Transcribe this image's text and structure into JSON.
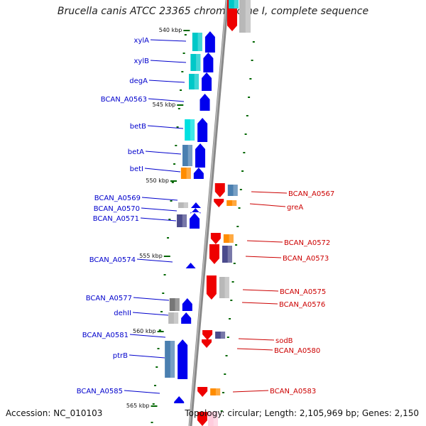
{
  "title": "Brucella canis ATCC 23365 chromosome I, complete sequence",
  "accession": "Accession: NC_010103",
  "topology": "Topology: circular; Length: 2,105,969 bp; Genes: 2,150",
  "colors": {
    "left_label": "#0000cc",
    "right_label": "#cc0000",
    "forward_arrow": "#0000ee",
    "reverse_arrow": "#ee0000",
    "cog_cyan": "#00c8c8",
    "cog_steel": "#4a7fb0",
    "cog_orange": "#ff8c00",
    "cog_slate": "#4b4b8c",
    "cog_gray": "#b8b8b8",
    "tick": "#006600"
  },
  "ticks": [
    {
      "label": "540 kbp"
    },
    {
      "label": "545 kbp"
    },
    {
      "label": "550 kbp"
    },
    {
      "label": "555 kbp"
    },
    {
      "label": "560 kbp"
    },
    {
      "label": "565 kbp"
    }
  ],
  "genes_left": [
    {
      "name": "xylA"
    },
    {
      "name": "xylB"
    },
    {
      "name": "degA"
    },
    {
      "name": "BCAN_A0563"
    },
    {
      "name": "betB"
    },
    {
      "name": "betA"
    },
    {
      "name": "betI"
    },
    {
      "name": "BCAN_A0569"
    },
    {
      "name": "BCAN_A0570"
    },
    {
      "name": "BCAN_A0571"
    },
    {
      "name": "BCAN_A0574"
    },
    {
      "name": "BCAN_A0577"
    },
    {
      "name": "dehII"
    },
    {
      "name": "BCAN_A0581"
    },
    {
      "name": "ptrB"
    },
    {
      "name": "BCAN_A0585"
    }
  ],
  "genes_right": [
    {
      "name": "BCAN_A0567"
    },
    {
      "name": "greA"
    },
    {
      "name": "BCAN_A0572"
    },
    {
      "name": "BCAN_A0573"
    },
    {
      "name": "BCAN_A0575"
    },
    {
      "name": "BCAN_A0576"
    },
    {
      "name": "sodB"
    },
    {
      "name": "BCAN_A0580"
    },
    {
      "name": "BCAN_A0583"
    }
  ]
}
